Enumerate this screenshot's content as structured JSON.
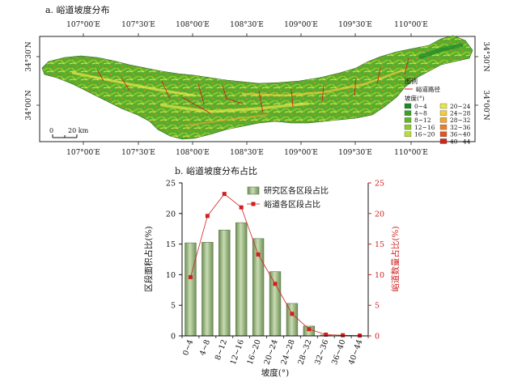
{
  "panel_a": {
    "title": "a. 峪道坡度分布",
    "top_ticks": [
      "107°00′E",
      "107°30′E",
      "108°00′E",
      "108°30′E",
      "109°00′E",
      "109°30′E",
      "110°00′E"
    ],
    "bottom_ticks": [
      "107°00′E",
      "107°30′E",
      "108°00′E",
      "108°30′E",
      "109°00′E",
      "109°30′E",
      "110°00′E"
    ],
    "left_ticks": [
      "34°30′N",
      "34°00′N"
    ],
    "right_ticks": [
      "34°30′N",
      "34°00′N"
    ],
    "scalebar": {
      "zero": "0",
      "label": "20 km"
    },
    "legend": {
      "title": "图例",
      "road_label": "峪道路径",
      "slope_title": "坡度(°)",
      "classes": [
        {
          "label": "0~4",
          "color": "#1f8a2c"
        },
        {
          "label": "4~8",
          "color": "#3e9e2a"
        },
        {
          "label": "8~12",
          "color": "#62b62a"
        },
        {
          "label": "12~16",
          "color": "#8fcb2e"
        },
        {
          "label": "16~20",
          "color": "#bddc3a"
        },
        {
          "label": "20~24",
          "color": "#e6e64a"
        },
        {
          "label": "24~28",
          "color": "#f2cc3a"
        },
        {
          "label": "28~32",
          "color": "#f0a830"
        },
        {
          "label": "32~36",
          "color": "#e8802a"
        },
        {
          "label": "36~40",
          "color": "#dc5522"
        },
        {
          "label": "40~44",
          "color": "#c8281c"
        }
      ]
    }
  },
  "panel_b": {
    "title": "b. 峪道坡度分布占比"
  },
  "chart_data": {
    "type": "bar",
    "title": "b. 峪道坡度分布占比",
    "xlabel": "坡度(°)",
    "ylabel_left": "区段面积占比(%)",
    "ylabel_right": "峪道数量占比(%)",
    "categories": [
      "0~4",
      "4~8",
      "8~12",
      "12~16",
      "16~20",
      "20~24",
      "24~28",
      "28~32",
      "32~36",
      "36~40",
      "40~44"
    ],
    "ylim": [
      0,
      25
    ],
    "yticks": [
      0,
      5,
      10,
      15,
      20,
      25
    ],
    "legend_position": "top-center",
    "series": [
      {
        "name": "研究区各区段占比",
        "kind": "bar",
        "axis": "left",
        "color": "#9bb783",
        "values": [
          15.2,
          15.3,
          17.3,
          18.5,
          15.9,
          10.5,
          5.3,
          1.6,
          0.15,
          0.05,
          0.02
        ]
      },
      {
        "name": "峪道各区段占比",
        "kind": "line",
        "axis": "right",
        "color": "#d11f1f",
        "values": [
          9.6,
          19.6,
          23.2,
          21.0,
          13.3,
          8.5,
          3.6,
          1.1,
          0.2,
          0.1,
          0.05
        ]
      }
    ]
  }
}
